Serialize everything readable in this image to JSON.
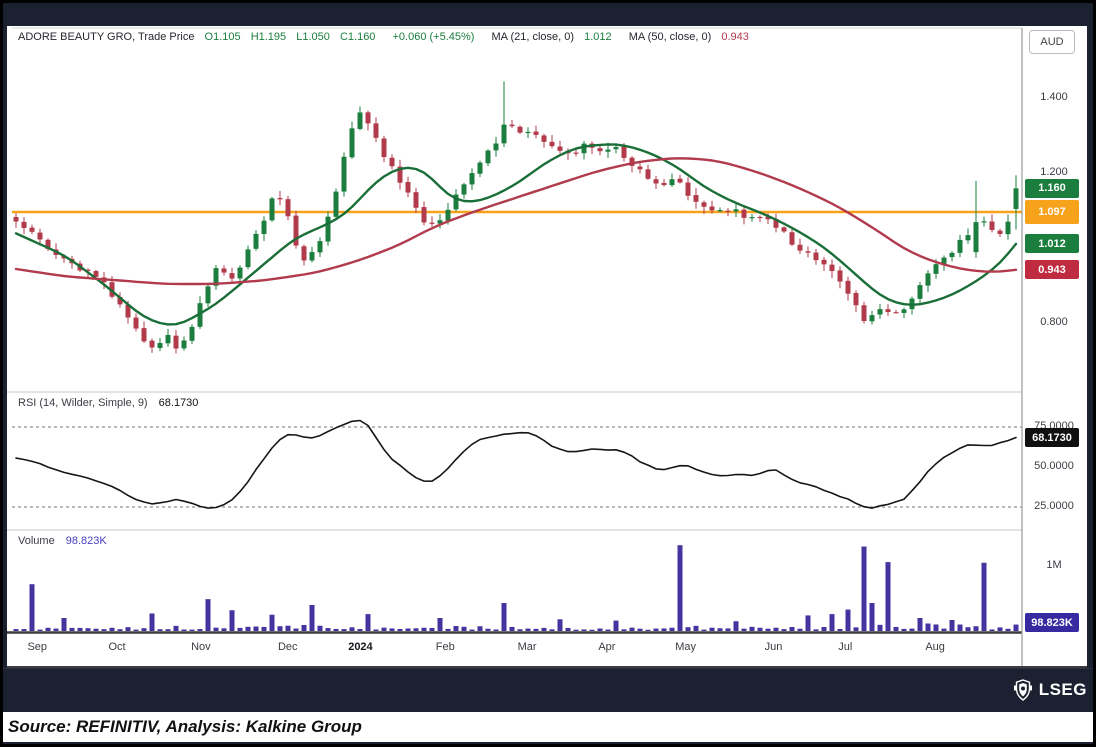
{
  "legend": {
    "instrument": "ADORE BEAUTY GRO, Trade Price",
    "open": "O1.105",
    "high": "H1.195",
    "low": "L1.050",
    "close": "C1.160",
    "change": "+0.060 (+5.45%)",
    "ma21_label": "MA (21, close, 0)",
    "ma21_value": "1.012",
    "ma50_label": "MA (50, close, 0)",
    "ma50_value": "0.943"
  },
  "rsi_legend": {
    "label": "RSI (14, Wilder, Simple, 9)",
    "value": "68.1730"
  },
  "volume_legend": {
    "label": "Volume",
    "value": "98.823K"
  },
  "axis": {
    "currency": "AUD",
    "price_ticks": [
      {
        "label": "1.400",
        "price": 1.4
      },
      {
        "label": "1.200",
        "price": 1.2
      },
      {
        "label": "0.800",
        "price": 0.8
      }
    ],
    "price_badges": [
      {
        "label": "1.160",
        "price": 1.16,
        "color": "#1b7e3e",
        "tall": false
      },
      {
        "label": "1.097",
        "price": 1.097,
        "color": "#f6a21a",
        "tall": true
      },
      {
        "label": "1.012",
        "price": 1.012,
        "color": "#1b7e3e",
        "tall": false
      },
      {
        "label": "0.943",
        "price": 0.943,
        "color": "#bf2c3f",
        "tall": false
      }
    ],
    "rsi_ticks": [
      {
        "label": "75.0000",
        "value": 75
      },
      {
        "label": "50.0000",
        "value": 50
      },
      {
        "label": "25.0000",
        "value": 25
      }
    ],
    "rsi_badge": {
      "label": "68.1730",
      "value": 68.173,
      "color": "#101010"
    },
    "volume_ticks": [
      {
        "label": "1M",
        "value": 1000
      }
    ],
    "volume_badge": {
      "label": "98.823K",
      "value": 98.823,
      "color": "#37299f"
    }
  },
  "x_axis": {
    "months": [
      {
        "label": "Sep",
        "t": 0.025,
        "bold": false
      },
      {
        "label": "Oct",
        "t": 0.104,
        "bold": false
      },
      {
        "label": "Nov",
        "t": 0.187,
        "bold": false
      },
      {
        "label": "Dec",
        "t": 0.273,
        "bold": false
      },
      {
        "label": "2024",
        "t": 0.345,
        "bold": true
      },
      {
        "label": "Feb",
        "t": 0.429,
        "bold": false
      },
      {
        "label": "Mar",
        "t": 0.51,
        "bold": false
      },
      {
        "label": "Apr",
        "t": 0.589,
        "bold": false
      },
      {
        "label": "May",
        "t": 0.667,
        "bold": false
      },
      {
        "label": "Jun",
        "t": 0.754,
        "bold": false
      },
      {
        "label": "Jul",
        "t": 0.825,
        "bold": false
      },
      {
        "label": "Aug",
        "t": 0.914,
        "bold": false
      }
    ]
  },
  "footer": {
    "source": "Source: REFINITIV, Analysis: Kalkine Group",
    "brand": "LSEG"
  },
  "chart_data": {
    "type": "candlestick",
    "title": "ADORE BEAUTY GRO, Trade Price",
    "currency": "AUD",
    "panels": [
      "price",
      "rsi",
      "volume"
    ],
    "price_axis_range": [
      0.7,
      1.5
    ],
    "horizontal_line": {
      "price": 1.097,
      "color": "#f9a11b"
    },
    "last_candle": {
      "open": 1.105,
      "high": 1.195,
      "low": 1.05,
      "close": 1.16,
      "change": 0.06,
      "change_pct": 5.45
    },
    "ma": [
      {
        "period": 21,
        "source": "close",
        "offset": 0,
        "last": 1.012,
        "color": "#1a6e38"
      },
      {
        "period": 50,
        "source": "close",
        "offset": 0,
        "last": 0.943,
        "color": "#b13a4c"
      }
    ],
    "colors": {
      "up": "#1b7e3e",
      "down": "#b23b4b",
      "rsi_line": "#161616",
      "volume_bar": "#43349f",
      "grid_dash": "#8f8f8f",
      "separator": "#c4c4c4"
    },
    "candles_n": 126,
    "close_path": [
      [
        0,
        1.07
      ],
      [
        0.02,
        1.03
      ],
      [
        0.04,
        0.99
      ],
      [
        0.06,
        0.95
      ],
      [
        0.08,
        0.93
      ],
      [
        0.095,
        0.88
      ],
      [
        0.11,
        0.82
      ],
      [
        0.125,
        0.76
      ],
      [
        0.14,
        0.735
      ],
      [
        0.15,
        0.77
      ],
      [
        0.16,
        0.735
      ],
      [
        0.175,
        0.78
      ],
      [
        0.19,
        0.89
      ],
      [
        0.2,
        0.95
      ],
      [
        0.215,
        0.92
      ],
      [
        0.23,
        0.98
      ],
      [
        0.245,
        1.06
      ],
      [
        0.258,
        1.14
      ],
      [
        0.268,
        1.12
      ],
      [
        0.278,
        1.02
      ],
      [
        0.29,
        0.96
      ],
      [
        0.3,
        1.0
      ],
      [
        0.312,
        1.08
      ],
      [
        0.322,
        1.17
      ],
      [
        0.332,
        1.3
      ],
      [
        0.342,
        1.37
      ],
      [
        0.35,
        1.34
      ],
      [
        0.36,
        1.29
      ],
      [
        0.372,
        1.23
      ],
      [
        0.385,
        1.17
      ],
      [
        0.398,
        1.12
      ],
      [
        0.41,
        1.05
      ],
      [
        0.422,
        1.07
      ],
      [
        0.435,
        1.12
      ],
      [
        0.448,
        1.17
      ],
      [
        0.458,
        1.21
      ],
      [
        0.468,
        1.25
      ],
      [
        0.478,
        1.27
      ],
      [
        0.488,
        1.29
      ],
      [
        0.497,
        1.33
      ],
      [
        0.507,
        1.29
      ],
      [
        0.515,
        1.33
      ],
      [
        0.525,
        1.29
      ],
      [
        0.54,
        1.26
      ],
      [
        0.555,
        1.25
      ],
      [
        0.57,
        1.28
      ],
      [
        0.583,
        1.25
      ],
      [
        0.6,
        1.27
      ],
      [
        0.615,
        1.23
      ],
      [
        0.63,
        1.19
      ],
      [
        0.645,
        1.16
      ],
      [
        0.658,
        1.19
      ],
      [
        0.672,
        1.14
      ],
      [
        0.685,
        1.11
      ],
      [
        0.7,
        1.09
      ],
      [
        0.715,
        1.11
      ],
      [
        0.73,
        1.07
      ],
      [
        0.745,
        1.09
      ],
      [
        0.76,
        1.06
      ],
      [
        0.775,
        1.02
      ],
      [
        0.79,
        0.99
      ],
      [
        0.805,
        0.96
      ],
      [
        0.82,
        0.93
      ],
      [
        0.835,
        0.87
      ],
      [
        0.85,
        0.8
      ],
      [
        0.862,
        0.84
      ],
      [
        0.875,
        0.82
      ],
      [
        0.888,
        0.84
      ],
      [
        0.9,
        0.88
      ],
      [
        0.912,
        0.94
      ],
      [
        0.925,
        0.97
      ],
      [
        0.938,
        1.0
      ],
      [
        0.95,
        1.03
      ],
      [
        0.96,
        1.09
      ],
      [
        0.97,
        1.06
      ],
      [
        0.98,
        1.04
      ],
      [
        0.99,
        1.05
      ],
      [
        1,
        1.16
      ]
    ],
    "key_candles": [
      {
        "t": 0.49,
        "o": 1.28,
        "h": 1.445,
        "l": 1.27,
        "c": 1.33
      },
      {
        "t": 0.957,
        "o": 0.99,
        "h": 1.18,
        "l": 0.975,
        "c": 1.07
      },
      {
        "t": 1.0,
        "o": 1.105,
        "h": 1.195,
        "l": 1.05,
        "c": 1.16
      }
    ],
    "ma21_path": [
      [
        0,
        1.04
      ],
      [
        0.05,
        0.98
      ],
      [
        0.09,
        0.9
      ],
      [
        0.13,
        0.81
      ],
      [
        0.16,
        0.79
      ],
      [
        0.2,
        0.85
      ],
      [
        0.24,
        0.94
      ],
      [
        0.28,
        1.03
      ],
      [
        0.3,
        1.05
      ],
      [
        0.33,
        1.09
      ],
      [
        0.36,
        1.18
      ],
      [
        0.385,
        1.22
      ],
      [
        0.41,
        1.21
      ],
      [
        0.43,
        1.14
      ],
      [
        0.45,
        1.12
      ],
      [
        0.47,
        1.13
      ],
      [
        0.5,
        1.17
      ],
      [
        0.53,
        1.23
      ],
      [
        0.56,
        1.27
      ],
      [
        0.6,
        1.28
      ],
      [
        0.63,
        1.26
      ],
      [
        0.66,
        1.22
      ],
      [
        0.69,
        1.16
      ],
      [
        0.72,
        1.12
      ],
      [
        0.75,
        1.09
      ],
      [
        0.78,
        1.05
      ],
      [
        0.81,
        1.0
      ],
      [
        0.84,
        0.93
      ],
      [
        0.865,
        0.87
      ],
      [
        0.89,
        0.845
      ],
      [
        0.915,
        0.855
      ],
      [
        0.94,
        0.88
      ],
      [
        0.965,
        0.92
      ],
      [
        0.985,
        0.96
      ],
      [
        1,
        1.012
      ]
    ],
    "ma50_path": [
      [
        0,
        0.945
      ],
      [
        0.05,
        0.925
      ],
      [
        0.1,
        0.915
      ],
      [
        0.15,
        0.905
      ],
      [
        0.2,
        0.905
      ],
      [
        0.25,
        0.915
      ],
      [
        0.3,
        0.935
      ],
      [
        0.34,
        0.965
      ],
      [
        0.38,
        1.005
      ],
      [
        0.42,
        1.06
      ],
      [
        0.46,
        1.1
      ],
      [
        0.5,
        1.135
      ],
      [
        0.54,
        1.17
      ],
      [
        0.58,
        1.205
      ],
      [
        0.62,
        1.23
      ],
      [
        0.66,
        1.242
      ],
      [
        0.7,
        1.235
      ],
      [
        0.74,
        1.205
      ],
      [
        0.78,
        1.165
      ],
      [
        0.82,
        1.115
      ],
      [
        0.86,
        1.05
      ],
      [
        0.89,
        0.995
      ],
      [
        0.92,
        0.962
      ],
      [
        0.95,
        0.942
      ],
      [
        0.98,
        0.936
      ],
      [
        1,
        0.943
      ]
    ],
    "rsi": {
      "params": "14, Wilder, Simple, 9",
      "last": 68.173,
      "levels": [
        75,
        25
      ],
      "path": [
        [
          0,
          57
        ],
        [
          0.03,
          50
        ],
        [
          0.06,
          45
        ],
        [
          0.09,
          40
        ],
        [
          0.12,
          30
        ],
        [
          0.14,
          26
        ],
        [
          0.16,
          30
        ],
        [
          0.18,
          27
        ],
        [
          0.2,
          24
        ],
        [
          0.22,
          30
        ],
        [
          0.24,
          48
        ],
        [
          0.26,
          65
        ],
        [
          0.275,
          72
        ],
        [
          0.29,
          66
        ],
        [
          0.3,
          70
        ],
        [
          0.315,
          73
        ],
        [
          0.33,
          79
        ],
        [
          0.345,
          80
        ],
        [
          0.355,
          78
        ],
        [
          0.365,
          60
        ],
        [
          0.38,
          52
        ],
        [
          0.395,
          45
        ],
        [
          0.41,
          40
        ],
        [
          0.425,
          44
        ],
        [
          0.44,
          55
        ],
        [
          0.455,
          65
        ],
        [
          0.47,
          70
        ],
        [
          0.485,
          68
        ],
        [
          0.495,
          72
        ],
        [
          0.505,
          69
        ],
        [
          0.515,
          73
        ],
        [
          0.53,
          65
        ],
        [
          0.545,
          60
        ],
        [
          0.56,
          57
        ],
        [
          0.575,
          62
        ],
        [
          0.59,
          58
        ],
        [
          0.605,
          62
        ],
        [
          0.62,
          55
        ],
        [
          0.635,
          50
        ],
        [
          0.65,
          46
        ],
        [
          0.665,
          52
        ],
        [
          0.68,
          48
        ],
        [
          0.695,
          45
        ],
        [
          0.71,
          43
        ],
        [
          0.725,
          48
        ],
        [
          0.74,
          44
        ],
        [
          0.755,
          50
        ],
        [
          0.77,
          44
        ],
        [
          0.785,
          40
        ],
        [
          0.8,
          37
        ],
        [
          0.815,
          33
        ],
        [
          0.83,
          30
        ],
        [
          0.845,
          25
        ],
        [
          0.855,
          22
        ],
        [
          0.868,
          28
        ],
        [
          0.88,
          26
        ],
        [
          0.893,
          32
        ],
        [
          0.907,
          45
        ],
        [
          0.92,
          52
        ],
        [
          0.935,
          58
        ],
        [
          0.948,
          62
        ],
        [
          0.958,
          66
        ],
        [
          0.968,
          60
        ],
        [
          0.978,
          64
        ],
        [
          0.988,
          66
        ],
        [
          1,
          68.17
        ]
      ]
    },
    "volume": {
      "last_k": 98.823,
      "unit": "K",
      "base_path_k": [
        [
          0,
          60
        ],
        [
          0.1,
          45
        ],
        [
          0.2,
          65
        ],
        [
          0.3,
          75
        ],
        [
          0.4,
          55
        ],
        [
          0.5,
          60
        ],
        [
          0.6,
          50
        ],
        [
          0.7,
          60
        ],
        [
          0.8,
          65
        ],
        [
          0.85,
          95
        ],
        [
          0.9,
          85
        ],
        [
          0.95,
          70
        ],
        [
          1,
          60
        ]
      ],
      "spikes_k": [
        [
          0.013,
          720
        ],
        [
          0.05,
          200
        ],
        [
          0.134,
          270
        ],
        [
          0.19,
          490
        ],
        [
          0.213,
          320
        ],
        [
          0.256,
          250
        ],
        [
          0.298,
          400
        ],
        [
          0.35,
          260
        ],
        [
          0.42,
          200
        ],
        [
          0.487,
          430
        ],
        [
          0.54,
          180
        ],
        [
          0.6,
          160
        ],
        [
          0.664,
          1320
        ],
        [
          0.72,
          150
        ],
        [
          0.79,
          240
        ],
        [
          0.818,
          260
        ],
        [
          0.832,
          330
        ],
        [
          0.849,
          1300
        ],
        [
          0.858,
          430
        ],
        [
          0.869,
          1060
        ],
        [
          0.905,
          200
        ],
        [
          0.937,
          170
        ],
        [
          0.965,
          1050
        ],
        [
          1,
          98.823
        ]
      ]
    }
  }
}
